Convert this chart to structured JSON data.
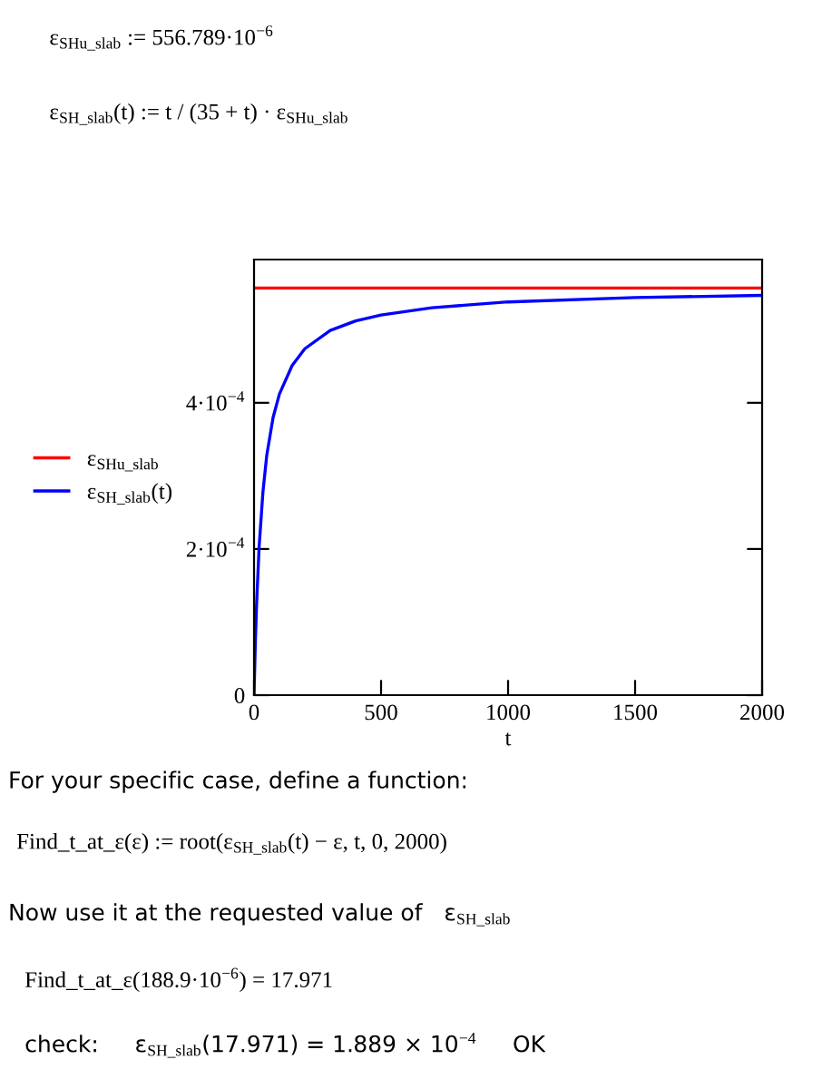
{
  "chart_data": {
    "type": "line",
    "xlabel": "t",
    "x": [
      0,
      5,
      10,
      20,
      35,
      50,
      75,
      100,
      150,
      200,
      300,
      400,
      500,
      700,
      1000,
      1500,
      2000
    ],
    "series": [
      {
        "name": "ε$_{SHu_slab}$",
        "color": "#ff0000",
        "x": [
          0,
          2000
        ],
        "values": [
          0.000557,
          0.000557
        ]
      },
      {
        "name": "ε$_{SH_slab}$(t)",
        "color": "#0000ff",
        "values": [
          0,
          7e-05,
          0.000124,
          0.000203,
          0.000278,
          0.000328,
          0.00038,
          0.000412,
          0.000451,
          0.000474,
          0.000499,
          0.000512,
          0.00052,
          0.00053,
          0.000538,
          0.000544,
          0.000547
        ]
      }
    ],
    "xlim": [
      0,
      2000
    ],
    "xticks": [
      0,
      500,
      1000,
      1500,
      2000
    ],
    "ylim": [
      0,
      0.000596
    ],
    "yticks": [
      0,
      {
        "value": 0.0002,
        "label": "2·10$^{−4}$"
      },
      {
        "value": 0.0004,
        "label": "4·10$^{−4}$"
      }
    ],
    "grid": false,
    "legend": "left",
    "marker": "none",
    "line_style": "solid",
    "annotations": [
      "ε$_{SHu_slab}$ := 556.789·10$^{−6}$",
      "ε$_{SH_slab}$(t) := t / (35 + t) · ε$_{SHu_slab}$",
      "For your specific case, define a function:",
      "Find_t_at_ε(ε) := root(ε$_{SH_slab}$(t) − ε, t, 0, 2000)",
      "Now use it at the requested value of   ε$_{SH_slab}$",
      "Find_t_at_ε(188.9·10$^{−6}$) = 17.971",
      "check:     ε$_{SH_slab}$(17.971) = 1.889 × 10$^{−4}$     OK"
    ]
  }
}
